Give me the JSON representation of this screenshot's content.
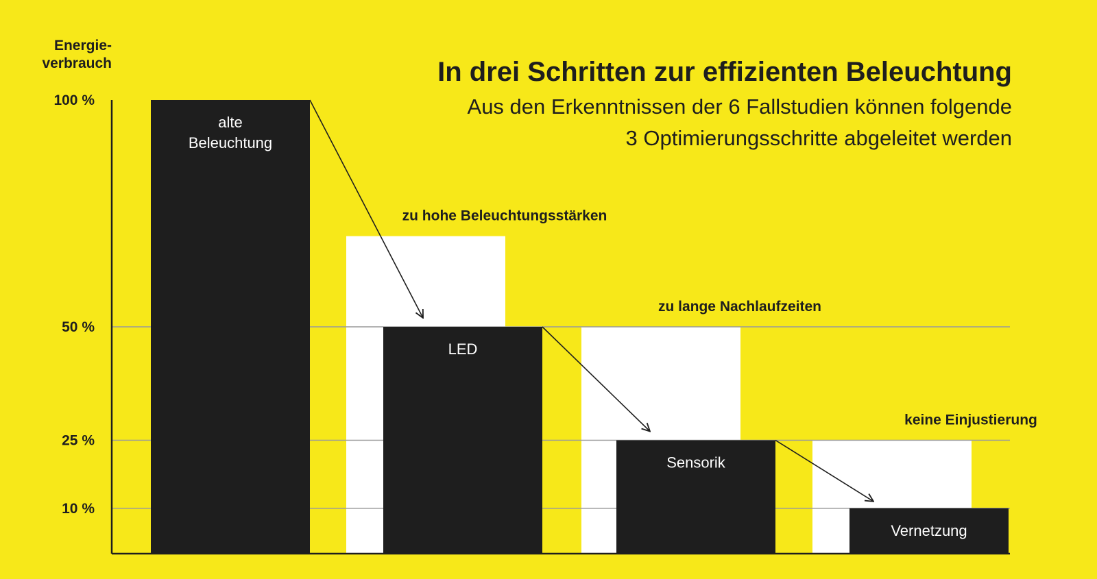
{
  "chart_data": {
    "type": "bar",
    "title": "In drei Schritten zur effizienten Beleuchtung",
    "subtitle_lines": [
      "Aus den Erkenntnissen der 6 Fallstudien können folgende",
      "3 Optimierungsschritte abgeleitet werden"
    ],
    "ylabel_lines": [
      "Energie-",
      "verbrauch"
    ],
    "yticks": [
      {
        "value": 100,
        "label": "100 %"
      },
      {
        "value": 50,
        "label": "50 %"
      },
      {
        "value": 25,
        "label": "25 %"
      },
      {
        "value": 10,
        "label": "10 %"
      }
    ],
    "ylim": [
      0,
      100
    ],
    "reference_lines": [
      50,
      25,
      10
    ],
    "categories": [
      "alte Beleuchtung",
      "LED",
      "Sensorik",
      "Vernetzung"
    ],
    "bar_label_lines": [
      [
        "alte",
        "Beleuchtung"
      ],
      [
        "LED"
      ],
      [
        "Sensorik"
      ],
      [
        "Vernetzung"
      ]
    ],
    "values": [
      100,
      50,
      25,
      10
    ],
    "steps": [
      {
        "label": "zu hohe Beleuchtungsstärken",
        "from": 70,
        "to": 50
      },
      {
        "label": "zu lange Nachlaufzeiten",
        "from": 50,
        "to": 25
      },
      {
        "label": "keine Einjustierung",
        "from": 25,
        "to": 10
      }
    ],
    "colors": {
      "background": "#F7E819",
      "bar": "#1E1E1E",
      "previous_level": "#FFFFFF",
      "gridline": "#9A9A9A",
      "text": "#1E1E1E",
      "bar_text": "#FFFFFF"
    }
  }
}
